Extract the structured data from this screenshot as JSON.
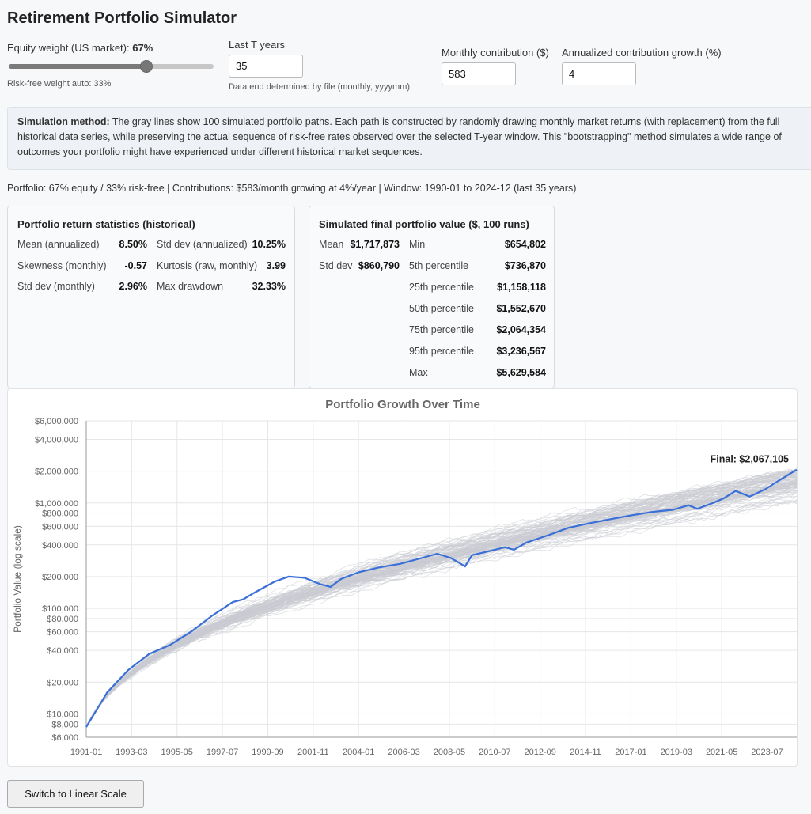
{
  "app": {
    "title": "Retirement Portfolio Simulator"
  },
  "controls": {
    "equity_label_prefix": "Equity weight (US market): ",
    "equity_value": "67%",
    "equity_fraction": 0.67,
    "riskfree_auto": "Risk-free weight auto: 33%",
    "years_label": "Last T years",
    "years_value": "35",
    "years_note": "Data end determined by file (monthly, yyyymm).",
    "contrib_label": "Monthly contribution ($)",
    "contrib_value": "583",
    "growth_label": "Annualized contribution growth (%)",
    "growth_value": "4"
  },
  "method": {
    "heading": "Simulation method:",
    "text": " The gray lines show 100 simulated portfolio paths. Each path is constructed by randomly drawing monthly market returns (with replacement) from the full historical data series, while preserving the actual sequence of risk-free rates observed over the selected T-year window. This \"bootstrapping\" method simulates a wide range of outcomes your portfolio might have experienced under different historical market sequences."
  },
  "summary": "Portfolio: 67% equity / 33% risk-free | Contributions: $583/month growing at 4%/year | Window: 1990-01 to 2024-12 (last 35 years)",
  "return_stats": {
    "title": "Portfolio return statistics (historical)",
    "left": [
      {
        "label": "Mean (annualized)",
        "value": "8.50%"
      },
      {
        "label": "Skewness (monthly)",
        "value": "-0.57"
      },
      {
        "label": "Std dev (monthly)",
        "value": "2.96%"
      }
    ],
    "right": [
      {
        "label": "Std dev (annualized)",
        "value": "10.25%"
      },
      {
        "label": "Kurtosis (raw, monthly)",
        "value": "3.99"
      },
      {
        "label": "Max drawdown",
        "value": "32.33%"
      }
    ]
  },
  "final_stats": {
    "title": "Simulated final portfolio value ($, 100 runs)",
    "mean_label": "Mean",
    "mean_value": "$1,717,873",
    "sd_label": "Std dev",
    "sd_value": "$860,790",
    "rows": [
      {
        "label": "Min",
        "value": "$654,802"
      },
      {
        "label": "5th percentile",
        "value": "$736,870"
      },
      {
        "label": "25th percentile",
        "value": "$1,158,118"
      },
      {
        "label": "50th percentile",
        "value": "$1,552,670"
      },
      {
        "label": "75th percentile",
        "value": "$2,064,354"
      },
      {
        "label": "95th percentile",
        "value": "$3,236,567"
      },
      {
        "label": "Max",
        "value": "$5,629,584"
      }
    ]
  },
  "chart_data": {
    "type": "line",
    "title": "Portfolio Growth Over Time",
    "ylabel": "Portfolio Value (log scale)",
    "xlabel": "",
    "y_scale": "log",
    "ylim": [
      6000,
      6000000
    ],
    "xlim": [
      "1991-01",
      "2024-12"
    ],
    "grid": true,
    "x_ticks": [
      "1991-01",
      "1993-03",
      "1995-05",
      "1997-07",
      "1999-09",
      "2001-11",
      "2004-01",
      "2006-03",
      "2008-05",
      "2010-07",
      "2012-09",
      "2014-11",
      "2017-01",
      "2019-03",
      "2021-05",
      "2023-07"
    ],
    "y_ticks": [
      {
        "value": 6000,
        "label": "$6,000"
      },
      {
        "value": 8000,
        "label": "$8,000"
      },
      {
        "value": 10000,
        "label": "$10,000"
      },
      {
        "value": 20000,
        "label": "$20,000"
      },
      {
        "value": 40000,
        "label": "$40,000"
      },
      {
        "value": 60000,
        "label": "$60,000"
      },
      {
        "value": 80000,
        "label": "$80,000"
      },
      {
        "value": 100000,
        "label": "$100,000"
      },
      {
        "value": 200000,
        "label": "$200,000"
      },
      {
        "value": 400000,
        "label": "$400,000"
      },
      {
        "value": 600000,
        "label": "$600,000"
      },
      {
        "value": 800000,
        "label": "$800,000"
      },
      {
        "value": 1000000,
        "label": "$1,000,000"
      },
      {
        "value": 2000000,
        "label": "$2,000,000"
      },
      {
        "value": 4000000,
        "label": "$4,000,000"
      },
      {
        "value": 6000000,
        "label": "$6,000,000"
      }
    ],
    "simulated_runs": 100,
    "simulated_color": "#c9ccd2",
    "actual_color": "#3a6fd8",
    "series": [
      {
        "x": [
          "1991-01",
          "1992-01",
          "1993-01",
          "1994-01",
          "1995-01",
          "1996-01",
          "1997-01",
          "1998-01",
          "1998-07",
          "1999-01",
          "2000-01",
          "2000-09",
          "2001-06",
          "2002-03",
          "2002-09",
          "2003-03",
          "2004-01",
          "2005-01",
          "2006-01",
          "2007-01",
          "2007-10",
          "2008-06",
          "2009-02",
          "2009-06",
          "2010-01",
          "2011-01",
          "2011-06",
          "2012-01",
          "2013-01",
          "2014-01",
          "2015-01",
          "2016-01",
          "2017-01",
          "2018-01",
          "2019-01",
          "2019-10",
          "2020-03",
          "2020-12",
          "2021-06",
          "2022-01",
          "2022-09",
          "2023-06",
          "2024-01",
          "2024-12"
        ],
        "values": [
          7500,
          16000,
          26000,
          37000,
          45000,
          60000,
          85000,
          115000,
          122000,
          140000,
          180000,
          200000,
          195000,
          170000,
          160000,
          190000,
          220000,
          245000,
          265000,
          300000,
          330000,
          300000,
          250000,
          320000,
          340000,
          380000,
          360000,
          420000,
          490000,
          580000,
          640000,
          700000,
          760000,
          820000,
          860000,
          950000,
          880000,
          1000000,
          1100000,
          1300000,
          1150000,
          1350000,
          1600000,
          2067105
        ]
      }
    ],
    "annotation": "Final: $2,067,105"
  },
  "buttons": {
    "scale_toggle": "Switch to Linear Scale"
  }
}
